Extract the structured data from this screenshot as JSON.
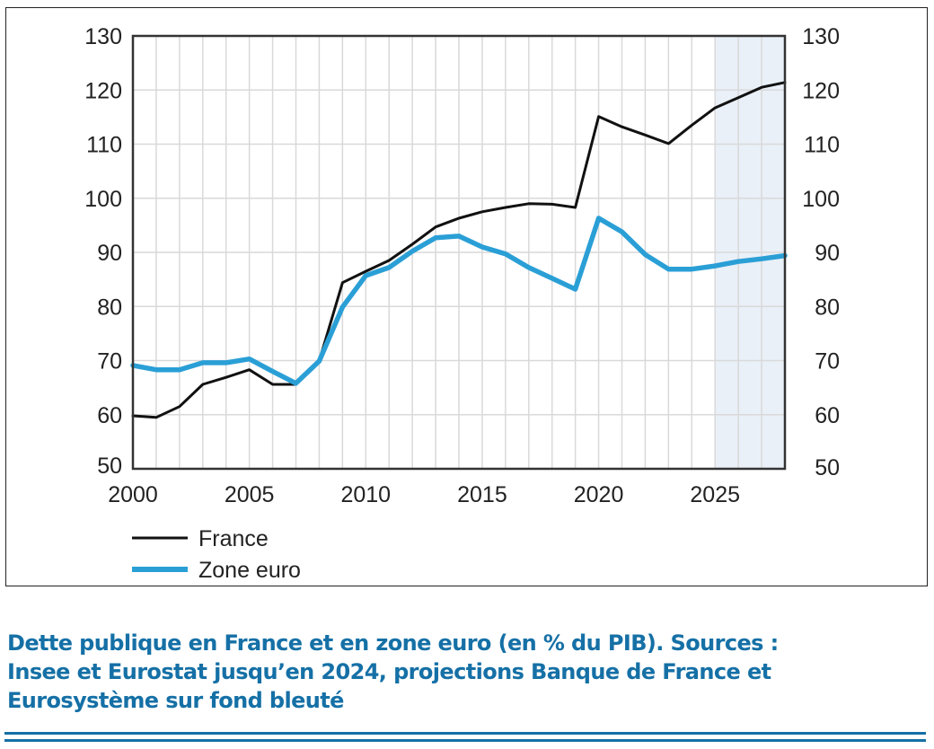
{
  "chart_data": {
    "type": "line",
    "title": "",
    "xlabel": "",
    "ylabel": "",
    "x": [
      2000,
      2001,
      2002,
      2003,
      2004,
      2005,
      2006,
      2007,
      2008,
      2009,
      2010,
      2011,
      2012,
      2013,
      2014,
      2015,
      2016,
      2017,
      2018,
      2019,
      2020,
      2021,
      2022,
      2023,
      2024,
      2025,
      2026,
      2027,
      2028
    ],
    "series": [
      {
        "name": "France",
        "color": "#111111",
        "values": [
          59.8,
          59.5,
          61.5,
          65.6,
          66.9,
          68.3,
          65.6,
          65.6,
          69.9,
          84.4,
          86.5,
          88.5,
          91.5,
          94.7,
          96.3,
          97.5,
          98.3,
          99.0,
          98.9,
          98.3,
          115.1,
          113.2,
          111.7,
          110.1,
          113.5,
          116.7,
          118.6,
          120.5,
          121.4
        ]
      },
      {
        "name": "Zone euro",
        "color": "#2a9fd6",
        "values": [
          69.1,
          68.3,
          68.3,
          69.6,
          69.6,
          70.3,
          68.0,
          65.8,
          69.9,
          79.9,
          85.7,
          87.2,
          90.2,
          92.7,
          93.0,
          91.0,
          89.7,
          87.2,
          85.2,
          83.2,
          96.3,
          93.8,
          89.6,
          86.9,
          86.9,
          87.5,
          88.3,
          88.8,
          89.4
        ]
      }
    ],
    "xlim": [
      2000,
      2028
    ],
    "ylim": [
      50,
      130
    ],
    "xticks": [
      2000,
      2005,
      2010,
      2015,
      2020,
      2025
    ],
    "xtick_labels": [
      "2000",
      "2005",
      "2010",
      "2015",
      "2020",
      "2025"
    ],
    "yticks": [
      50,
      60,
      70,
      80,
      90,
      100,
      110,
      120,
      130
    ],
    "ytick_labels": [
      "50",
      "60",
      "70",
      "80",
      "90",
      "100",
      "110",
      "120",
      "130"
    ],
    "y_axis_sides": "left-and-right",
    "grid": true,
    "vertical_grid_step_years": 1,
    "projection_shading": {
      "from": 2025,
      "to": 2028,
      "color": "#e9f0f8"
    },
    "legend": {
      "placement": "bottom-left",
      "entries": [
        {
          "label": "France",
          "color": "#111111"
        },
        {
          "label": "Zone euro",
          "color": "#2a9fd6"
        }
      ]
    }
  },
  "caption": {
    "line1": "Dette publique en France et en zone euro (en % du PIB). Sources :",
    "line2": "Insee et Eurostat jusqu’en 2024, projections Banque de France et",
    "line3": "Eurosystème sur fond bleuté"
  },
  "colors": {
    "caption": "#1570a6",
    "grid": "#d9d9d9",
    "axis": "#333333"
  }
}
